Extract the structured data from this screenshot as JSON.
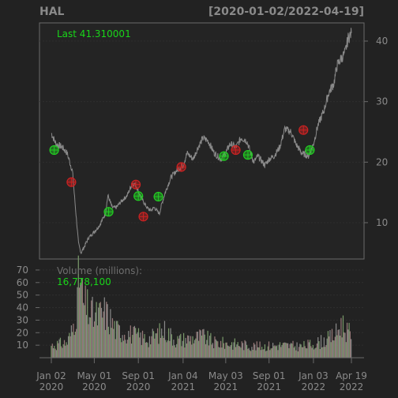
{
  "chart_data": [
    {
      "type": "line",
      "title": "HAL",
      "date_range": "[2020-01-02/2022-04-19]",
      "last_label": "Last 41.310001",
      "y_ticks": [
        10,
        20,
        30,
        40
      ],
      "ylim": [
        4,
        43
      ],
      "x_ticks": [
        {
          "month": "Jan 02",
          "year": "2020",
          "date": "2020-01-02"
        },
        {
          "month": "May 01",
          "year": "2020",
          "date": "2020-05-01"
        },
        {
          "month": "Sep 01",
          "year": "2020",
          "date": "2020-09-01"
        },
        {
          "month": "Jan 04",
          "year": "2021",
          "date": "2021-01-04"
        },
        {
          "month": "May 03",
          "year": "2021",
          "date": "2021-05-03"
        },
        {
          "month": "Sep 01",
          "year": "2021",
          "date": "2021-09-01"
        },
        {
          "month": "Jan 03",
          "year": "2022",
          "date": "2022-01-03"
        },
        {
          "month": "Apr 19",
          "year": "2022",
          "date": "2022-04-19"
        }
      ],
      "series": [
        {
          "color": "#8a8a8a",
          "points": [
            [
              "2020-01-02",
              24.8
            ],
            [
              "2020-01-15",
              23.0
            ],
            [
              "2020-02-01",
              22.5
            ],
            [
              "2020-02-15",
              21.5
            ],
            [
              "2020-03-01",
              18.5
            ],
            [
              "2020-03-10",
              12.0
            ],
            [
              "2020-03-18",
              6.5
            ],
            [
              "2020-03-25",
              5.0
            ],
            [
              "2020-04-01",
              5.8
            ],
            [
              "2020-04-15",
              7.5
            ],
            [
              "2020-05-01",
              8.5
            ],
            [
              "2020-05-15",
              9.5
            ],
            [
              "2020-06-01",
              11.5
            ],
            [
              "2020-06-08",
              14.5
            ],
            [
              "2020-06-20",
              12.5
            ],
            [
              "2020-07-01",
              12.5
            ],
            [
              "2020-07-15",
              13.5
            ],
            [
              "2020-08-01",
              14.5
            ],
            [
              "2020-08-15",
              16.5
            ],
            [
              "2020-08-25",
              16.2
            ],
            [
              "2020-09-10",
              14.0
            ],
            [
              "2020-09-25",
              12.5
            ],
            [
              "2020-10-05",
              12.0
            ],
            [
              "2020-10-15",
              12.5
            ],
            [
              "2020-10-30",
              11.5
            ],
            [
              "2020-11-05",
              13.0
            ],
            [
              "2020-11-15",
              15.0
            ],
            [
              "2020-12-01",
              17.5
            ],
            [
              "2020-12-15",
              18.5
            ],
            [
              "2021-01-04",
              19.5
            ],
            [
              "2021-01-15",
              21.5
            ],
            [
              "2021-02-01",
              20.5
            ],
            [
              "2021-02-15",
              22.5
            ],
            [
              "2021-03-01",
              24.0
            ],
            [
              "2021-03-15",
              23.5
            ],
            [
              "2021-04-01",
              21.5
            ],
            [
              "2021-04-20",
              20.5
            ],
            [
              "2021-05-03",
              21.5
            ],
            [
              "2021-05-15",
              23.0
            ],
            [
              "2021-06-01",
              22.5
            ],
            [
              "2021-06-15",
              24.0
            ],
            [
              "2021-07-01",
              23.5
            ],
            [
              "2021-07-20",
              20.0
            ],
            [
              "2021-08-01",
              21.0
            ],
            [
              "2021-08-20",
              19.5
            ],
            [
              "2021-09-01",
              20.5
            ],
            [
              "2021-09-15",
              21.0
            ],
            [
              "2021-10-01",
              22.5
            ],
            [
              "2021-10-15",
              25.5
            ],
            [
              "2021-11-01",
              25.0
            ],
            [
              "2021-11-15",
              23.0
            ],
            [
              "2021-12-01",
              21.5
            ],
            [
              "2021-12-20",
              21.0
            ],
            [
              "2022-01-03",
              23.0
            ],
            [
              "2022-01-15",
              26.0
            ],
            [
              "2022-02-01",
              28.5
            ],
            [
              "2022-02-15",
              31.5
            ],
            [
              "2022-03-01",
              33.0
            ],
            [
              "2022-03-10",
              36.0
            ],
            [
              "2022-03-20",
              37.0
            ],
            [
              "2022-04-01",
              38.0
            ],
            [
              "2022-04-10",
              40.5
            ],
            [
              "2022-04-19",
              41.31
            ]
          ]
        }
      ],
      "signals": [
        {
          "date": "2020-01-10",
          "value": 22.0,
          "kind": "buy"
        },
        {
          "date": "2020-02-27",
          "value": 16.7,
          "kind": "sell"
        },
        {
          "date": "2020-06-10",
          "value": 11.8,
          "kind": "buy"
        },
        {
          "date": "2020-08-25",
          "value": 16.3,
          "kind": "sell"
        },
        {
          "date": "2020-09-01",
          "value": 14.4,
          "kind": "buy"
        },
        {
          "date": "2020-09-15",
          "value": 11.0,
          "kind": "sell"
        },
        {
          "date": "2020-10-27",
          "value": 14.3,
          "kind": "buy"
        },
        {
          "date": "2020-12-30",
          "value": 19.2,
          "kind": "sell"
        },
        {
          "date": "2021-04-28",
          "value": 21.0,
          "kind": "buy"
        },
        {
          "date": "2021-05-31",
          "value": 22.0,
          "kind": "sell"
        },
        {
          "date": "2021-07-04",
          "value": 21.2,
          "kind": "buy"
        },
        {
          "date": "2021-12-06",
          "value": 25.3,
          "kind": "sell"
        },
        {
          "date": "2021-12-24",
          "value": 22.0,
          "kind": "buy"
        }
      ],
      "signal_colors": {
        "buy": "#22cc22",
        "sell": "#cc2222"
      }
    },
    {
      "type": "bar",
      "label": "Volume (millions):",
      "last_value": "16,778,100",
      "y_ticks": [
        10,
        20,
        30,
        40,
        50,
        60,
        70
      ],
      "ylim": [
        0,
        75
      ],
      "bar_colors": [
        "#7a9a6a",
        "#9a7a7a",
        "#8a8a8a"
      ],
      "profile": [
        [
          "2020-01-02",
          10
        ],
        [
          "2020-02-15",
          12
        ],
        [
          "2020-03-01",
          22
        ],
        [
          "2020-03-15",
          45
        ],
        [
          "2020-03-20",
          68
        ],
        [
          "2020-04-01",
          42
        ],
        [
          "2020-04-15",
          38
        ],
        [
          "2020-05-01",
          32
        ],
        [
          "2020-06-01",
          36
        ],
        [
          "2020-06-15",
          30
        ],
        [
          "2020-07-01",
          22
        ],
        [
          "2020-08-01",
          20
        ],
        [
          "2020-09-01",
          17
        ],
        [
          "2020-10-01",
          15
        ],
        [
          "2020-11-15",
          22
        ],
        [
          "2020-12-15",
          14
        ],
        [
          "2021-01-15",
          15
        ],
        [
          "2021-03-01",
          17
        ],
        [
          "2021-04-01",
          12
        ],
        [
          "2021-06-01",
          11
        ],
        [
          "2021-08-01",
          9
        ],
        [
          "2021-10-01",
          10
        ],
        [
          "2021-12-01",
          9
        ],
        [
          "2022-01-15",
          12
        ],
        [
          "2022-02-15",
          15
        ],
        [
          "2022-03-10",
          20
        ],
        [
          "2022-03-20",
          28
        ],
        [
          "2022-04-19",
          17
        ]
      ]
    }
  ]
}
